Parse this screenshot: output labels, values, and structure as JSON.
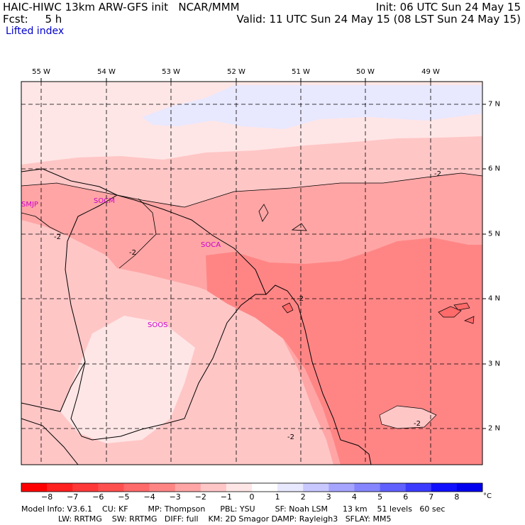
{
  "header": {
    "line1_left": "HAIC-HIWC 13km ARW-GFS init   NCAR/MMM",
    "line2_left": "Fcst:     5 h",
    "line1_right": "Init: 06 UTC Sun 24 May 15",
    "line2_right": "Valid: 11 UTC Sun 24 May 15 (08 LST Sun 24 May 15)",
    "field": "Lifted index"
  },
  "map": {
    "lon_labels": [
      "55 W",
      "54 W",
      "53 W",
      "52 W",
      "51 W",
      "50 W",
      "49 W"
    ],
    "lat_labels": [
      "7 N",
      "6 N",
      "5 N",
      "4 N",
      "3 N",
      "2 N"
    ],
    "stations": [
      "SMJP",
      "SOCM",
      "SOCA",
      "SOOS"
    ],
    "contour_labels": [
      "-2",
      "-2",
      "-2",
      "-2",
      "-2",
      "-2"
    ]
  },
  "colorbar": {
    "unit": "°C",
    "tick_labels": [
      "−8",
      "−7",
      "−6",
      "−5",
      "−4",
      "−3",
      "−2",
      "−1",
      "0",
      "1",
      "2",
      "3",
      "4",
      "5",
      "6",
      "7",
      "8"
    ],
    "colors": [
      "#ff0000",
      "#ff2020",
      "#ff3838",
      "#ff5050",
      "#ff6a6a",
      "#ff8585",
      "#ffa5a5",
      "#ffc6c6",
      "#ffe6e6",
      "#ffffff",
      "#e8e8ff",
      "#c8c8ff",
      "#a5a5ff",
      "#8585ff",
      "#6060ff",
      "#3b3bff",
      "#1010ff",
      "#0000ee"
    ]
  },
  "footer": {
    "line1": "Model Info: V3.6.1    CU: KF        MP: Thompson      PBL: YSU        SF: Noah LSM      13 km    51 levels   60 sec",
    "line2": "LW: RRTMG    SW: RRTMG   DIFF: full    KM: 2D Smagor DAMP: Rayleigh3   SFLAY: MM5"
  }
}
